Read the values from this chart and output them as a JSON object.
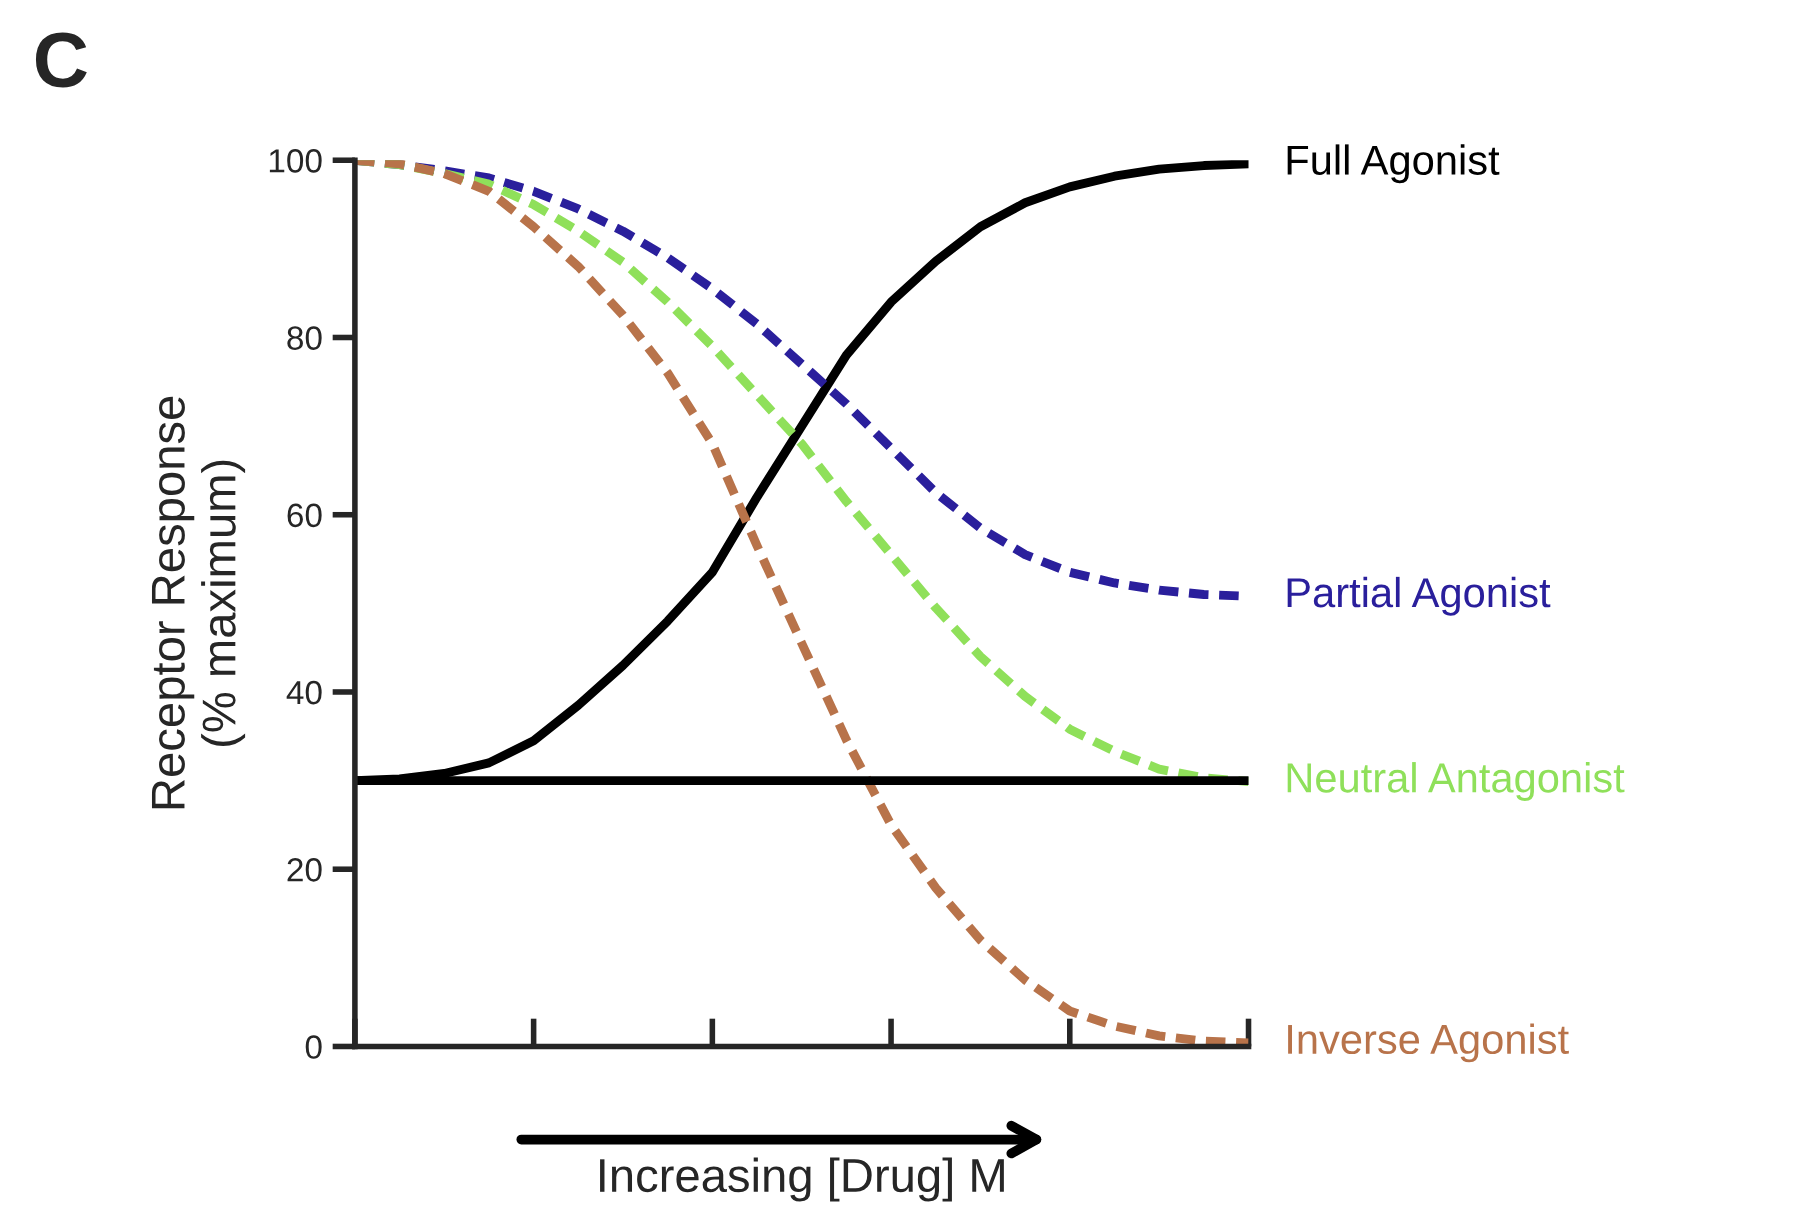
{
  "chart_data": {
    "type": "line",
    "xlabel": "Increasing [Drug] M",
    "ylabel": "Receptor Response\n(% maximum)",
    "annotations": [
      "C"
    ],
    "categories": [
      null,
      null,
      null,
      null,
      null,
      null,
      null,
      null,
      null,
      null,
      null,
      null,
      null,
      null,
      null,
      null,
      null,
      null,
      null,
      null,
      null
    ],
    "series": [
      {
        "name": "Full Agonist",
        "color": "#000000",
        "line_style": "solid",
        "values": [
          30,
          30.2,
          30.8,
          32,
          34.5,
          38.5,
          43,
          48,
          53.5,
          62,
          70,
          78,
          84,
          88.6,
          92.5,
          95.2,
          97,
          98.2,
          99,
          99.4,
          99.6
        ]
      },
      {
        "name": "Partial Agonist",
        "color": "#2a1f9c",
        "line_style": "dashed",
        "values": [
          100,
          99.5,
          98.8,
          98,
          96.5,
          94.5,
          92,
          89,
          85.5,
          81.5,
          77,
          72.5,
          67.5,
          62.5,
          58.5,
          55.5,
          53.5,
          52.3,
          51.5,
          51,
          50.8
        ]
      },
      {
        "name": "Neutral Antagonist",
        "color": "#8fe05a",
        "line_style": "dashed",
        "values": [
          100,
          99.5,
          98.5,
          97.3,
          95,
          92,
          88.5,
          84,
          79,
          73.5,
          68,
          61.5,
          55.5,
          49.5,
          44,
          39.5,
          35.8,
          33.3,
          31.3,
          30.3,
          29.9
        ]
      },
      {
        "name": "Inverse Agonist",
        "color": "#b8734a",
        "line_style": "dashed",
        "values": [
          100,
          99.6,
          98.5,
          96.5,
          92.5,
          88,
          82.5,
          76,
          68,
          56.5,
          45.5,
          34.6,
          25,
          17.9,
          12,
          7.5,
          4,
          2.3,
          1.2,
          0.6,
          0.4
        ]
      }
    ],
    "ref_lines": [
      {
        "axis": "y",
        "value": 30,
        "color": "#000000",
        "line_style": "solid"
      }
    ],
    "ylim": [
      0,
      100
    ],
    "yticks": [
      0,
      20,
      40,
      60,
      80,
      100
    ],
    "tick_labels": "y",
    "grid": false
  }
}
